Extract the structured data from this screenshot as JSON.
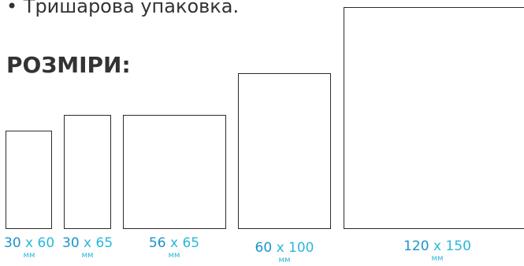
{
  "header": {
    "bullet_text": "• Тришарова упаковка.",
    "section_title": "РОЗМІРИ:"
  },
  "sizes": [
    {
      "width": "30",
      "sep": "x",
      "height": "60",
      "unit": "мм"
    },
    {
      "width": "30",
      "sep": "x",
      "height": "65",
      "unit": "мм"
    },
    {
      "width": "56",
      "sep": "x",
      "height": "65",
      "unit": "мм"
    },
    {
      "width": "60",
      "sep": "x",
      "height": "100",
      "unit": "мм"
    },
    {
      "width": "120",
      "sep": "x",
      "height": "150",
      "unit": "мм"
    }
  ],
  "colors": {
    "text": "#333333",
    "accent": "#1a93c9",
    "accent_light": "#2ab8d8",
    "outline": "#2b2b2b"
  }
}
